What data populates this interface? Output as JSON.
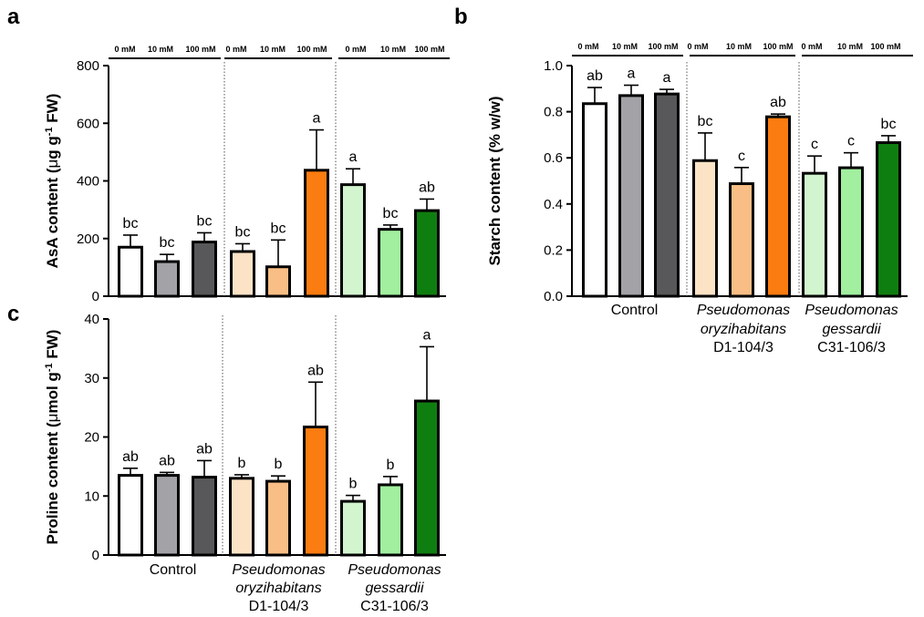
{
  "figure": {
    "group_labels": {
      "control": [
        "Control"
      ],
      "oryzi": [
        "Pseudomonas",
        "oryzihabitans",
        "D1-104/3"
      ],
      "gessardii": [
        "Pseudomonas",
        "gessardii",
        "C31-106/3"
      ]
    },
    "group_label_italic": [
      [
        false
      ],
      [
        true,
        true,
        false
      ],
      [
        true,
        true,
        false
      ]
    ],
    "concentration_labels_a": [
      "0 mM",
      "10 mM",
      "100 mM",
      "0 mM",
      "10 mM",
      "100 mM",
      "0 mM",
      "10 mM",
      "100 mM"
    ],
    "concentration_labels_b": [
      "0 mM",
      "10 mM",
      "100 mM",
      "0 mM",
      "10 mM",
      "100 mM",
      "0 mM",
      "10 mM",
      "100 mM"
    ],
    "bar_colors": [
      "#ffffff",
      "#a2a2a7",
      "#58585a",
      "#fde3c6",
      "#f9be85",
      "#fb7c10",
      "#d2f5cf",
      "#a1ef9f",
      "#0f7e10"
    ]
  },
  "chart_data": [
    {
      "id": "a",
      "panel_label": "a",
      "type": "bar",
      "ylabel_pre": "AsA content (",
      "ylabel_mu": "μ",
      "ylabel_mid": "g g",
      "ylabel_sup": "-1",
      "ylabel_post": " FW)",
      "ylim": [
        0,
        800
      ],
      "yticks": [
        "0",
        "200",
        "400",
        "600",
        "800"
      ],
      "values": [
        170,
        120,
        188,
        155,
        102,
        437,
        387,
        232,
        297
      ],
      "errors": [
        42,
        25,
        32,
        27,
        93,
        140,
        55,
        15,
        40
      ],
      "letters": [
        "bc",
        "bc",
        "bc",
        "bc",
        "bc",
        "a",
        "a",
        "bc",
        "ab"
      ]
    },
    {
      "id": "b",
      "panel_label": "b",
      "type": "bar",
      "ylabel_pre": "Starch content (% w/w)",
      "ylim": [
        0,
        1.0
      ],
      "yticks": [
        "0.0",
        "0.2",
        "0.4",
        "0.6",
        "0.8",
        "1.0"
      ],
      "values": [
        0.835,
        0.87,
        0.877,
        0.588,
        0.488,
        0.778,
        0.533,
        0.557,
        0.666
      ],
      "errors": [
        0.07,
        0.045,
        0.02,
        0.12,
        0.07,
        0.012,
        0.075,
        0.065,
        0.03
      ],
      "letters": [
        "ab",
        "a",
        "a",
        "bc",
        "c",
        "ab",
        "c",
        "c",
        "bc"
      ]
    },
    {
      "id": "c",
      "panel_label": "c",
      "type": "bar",
      "ylabel_pre": "Proline content (",
      "ylabel_mu": "μ",
      "ylabel_mid": "mol g",
      "ylabel_sup": "-1",
      "ylabel_post": " FW)",
      "ylim": [
        0,
        40
      ],
      "yticks": [
        "0",
        "10",
        "20",
        "30",
        "40"
      ],
      "values": [
        13.5,
        13.5,
        13.2,
        13.0,
        12.5,
        21.7,
        9.1,
        11.9,
        26.1
      ],
      "errors": [
        1.2,
        0.5,
        2.8,
        0.6,
        0.9,
        7.6,
        1.0,
        1.4,
        9.2
      ],
      "letters": [
        "ab",
        "ab",
        "ab",
        "b",
        "b",
        "ab",
        "b",
        "b",
        "a"
      ]
    }
  ]
}
